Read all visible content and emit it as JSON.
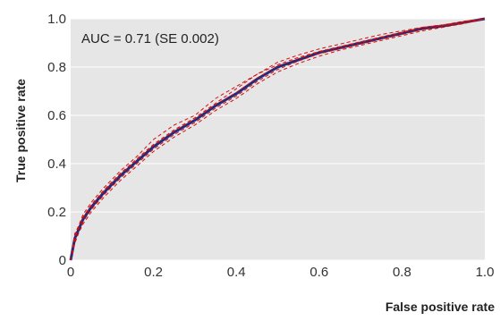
{
  "chart_data": {
    "type": "line",
    "xlabel": "False positive rate",
    "ylabel": "True positive rate",
    "xlim": [
      0,
      1
    ],
    "ylim": [
      0,
      1
    ],
    "x_ticks": [
      0,
      0.2,
      0.4,
      0.6,
      0.8,
      1.0
    ],
    "y_ticks": [
      0,
      0.2,
      0.4,
      0.6,
      0.8,
      1.0
    ],
    "x_tick_labels": [
      "0",
      "0.2",
      "0.4",
      "0.6",
      "0.8",
      "1.0"
    ],
    "y_tick_labels": [
      "0",
      "0.2",
      "0.4",
      "0.6",
      "0.8",
      "1.0"
    ],
    "grid": true,
    "annotation": "AUC = 0.71 (SE 0.002)",
    "colors": {
      "plot_background": "#e6e6e6",
      "grid": "#ffffff",
      "mean_curve": "#1f2a80",
      "bootstrap_curves": "#cc1111"
    },
    "series": [
      {
        "style": "solid",
        "x": [
          0,
          0.01,
          0.03,
          0.05,
          0.08,
          0.12,
          0.16,
          0.2,
          0.25,
          0.3,
          0.35,
          0.4,
          0.45,
          0.5,
          0.55,
          0.6,
          0.65,
          0.7,
          0.75,
          0.8,
          0.85,
          0.9,
          0.95,
          1.0
        ],
        "values": [
          0,
          0.09,
          0.17,
          0.22,
          0.28,
          0.35,
          0.41,
          0.47,
          0.53,
          0.58,
          0.64,
          0.69,
          0.75,
          0.8,
          0.83,
          0.86,
          0.88,
          0.9,
          0.92,
          0.94,
          0.96,
          0.97,
          0.985,
          1.0
        ]
      },
      {
        "style": "dashed",
        "x": [
          0,
          0.01,
          0.03,
          0.05,
          0.08,
          0.12,
          0.16,
          0.2,
          0.25,
          0.3,
          0.35,
          0.4,
          0.45,
          0.5,
          0.55,
          0.6,
          0.65,
          0.7,
          0.75,
          0.8,
          0.85,
          0.9,
          0.95,
          1.0
        ],
        "values": [
          0,
          0.1,
          0.19,
          0.24,
          0.3,
          0.37,
          0.43,
          0.5,
          0.56,
          0.6,
          0.67,
          0.72,
          0.77,
          0.82,
          0.85,
          0.875,
          0.895,
          0.915,
          0.935,
          0.95,
          0.965,
          0.975,
          0.99,
          1.0
        ]
      },
      {
        "style": "dashed",
        "x": [
          0,
          0.01,
          0.03,
          0.05,
          0.08,
          0.12,
          0.16,
          0.2,
          0.25,
          0.3,
          0.35,
          0.4,
          0.45,
          0.5,
          0.55,
          0.6,
          0.65,
          0.7,
          0.75,
          0.8,
          0.85,
          0.9,
          0.95,
          1.0
        ],
        "values": [
          0,
          0.08,
          0.15,
          0.2,
          0.26,
          0.33,
          0.39,
          0.45,
          0.51,
          0.56,
          0.62,
          0.67,
          0.73,
          0.78,
          0.815,
          0.845,
          0.87,
          0.89,
          0.91,
          0.93,
          0.95,
          0.965,
          0.98,
          1.0
        ]
      },
      {
        "style": "dashed",
        "x": [
          0,
          0.01,
          0.03,
          0.05,
          0.08,
          0.12,
          0.16,
          0.2,
          0.25,
          0.3,
          0.35,
          0.4,
          0.45,
          0.5,
          0.55,
          0.6,
          0.65,
          0.7,
          0.75,
          0.8,
          0.85,
          0.9,
          0.95,
          1.0
        ],
        "values": [
          0,
          0.11,
          0.18,
          0.23,
          0.29,
          0.36,
          0.42,
          0.48,
          0.54,
          0.59,
          0.65,
          0.71,
          0.77,
          0.81,
          0.84,
          0.865,
          0.885,
          0.905,
          0.925,
          0.945,
          0.965,
          0.975,
          0.988,
          1.0
        ]
      },
      {
        "style": "dashed",
        "x": [
          0,
          0.01,
          0.03,
          0.05,
          0.08,
          0.12,
          0.16,
          0.2,
          0.25,
          0.3,
          0.35,
          0.4,
          0.45,
          0.5,
          0.55,
          0.6,
          0.65,
          0.7,
          0.75,
          0.8,
          0.85,
          0.9,
          0.95,
          1.0
        ],
        "values": [
          0,
          0.07,
          0.16,
          0.21,
          0.27,
          0.34,
          0.4,
          0.46,
          0.52,
          0.57,
          0.63,
          0.68,
          0.74,
          0.79,
          0.825,
          0.855,
          0.875,
          0.895,
          0.915,
          0.935,
          0.955,
          0.968,
          0.982,
          1.0
        ]
      },
      {
        "style": "dashed",
        "x": [
          0,
          0.01,
          0.03,
          0.05,
          0.08,
          0.12,
          0.16,
          0.2,
          0.25,
          0.3,
          0.35,
          0.4,
          0.45,
          0.5,
          0.55,
          0.6,
          0.65,
          0.7,
          0.75,
          0.8,
          0.85,
          0.9,
          0.95,
          1.0
        ],
        "values": [
          0,
          0.095,
          0.175,
          0.225,
          0.285,
          0.355,
          0.415,
          0.475,
          0.535,
          0.585,
          0.645,
          0.695,
          0.755,
          0.805,
          0.835,
          0.862,
          0.882,
          0.902,
          0.922,
          0.942,
          0.962,
          0.972,
          0.986,
          1.0
        ]
      }
    ]
  }
}
